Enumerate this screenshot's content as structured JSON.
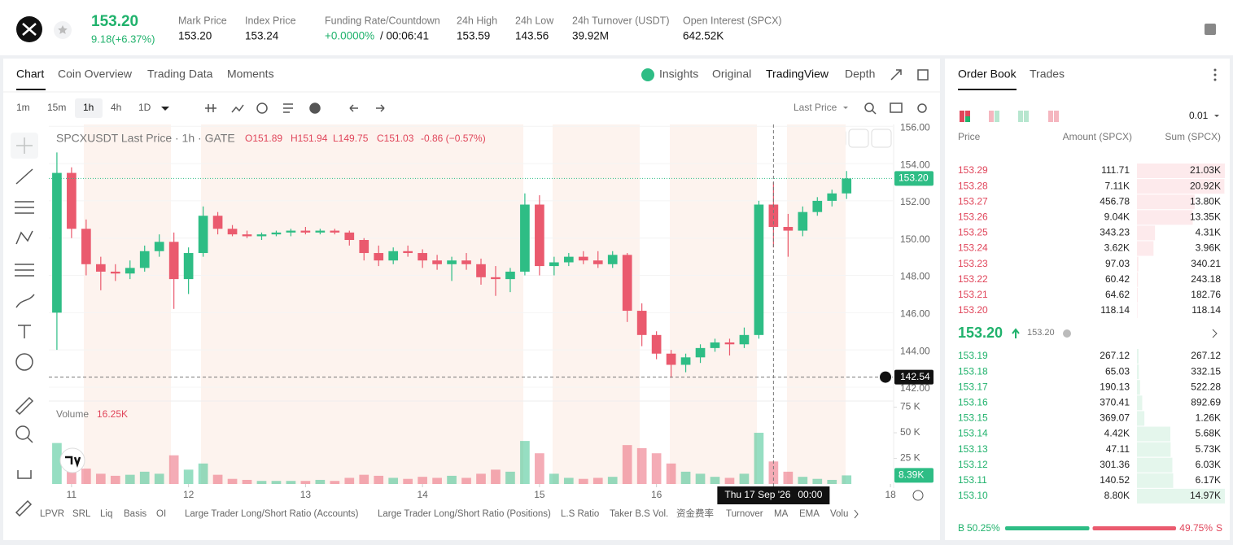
{
  "header": {
    "price": "153.20",
    "change": "9.18(+6.37%)",
    "stats": [
      {
        "label": "Mark Price",
        "value": "153.20"
      },
      {
        "label": "Index Price",
        "value": "153.24"
      },
      {
        "label": "Funding Rate/Countdown",
        "value": "+0.0000%",
        "value2": "/ 00:06:41"
      },
      {
        "label": "24h High",
        "value": "153.59"
      },
      {
        "label": "24h Low",
        "value": "143.56"
      },
      {
        "label": "24h Turnover (USDT)",
        "value": "39.92M"
      },
      {
        "label": "Open Interest (SPCX)",
        "value": "642.52K"
      }
    ]
  },
  "chart_tabs": [
    "Chart",
    "Coin Overview",
    "Trading Data",
    "Moments"
  ],
  "view_tabs": [
    "Insights",
    "Original",
    "TradingView",
    "Depth"
  ],
  "intervals": [
    "1m",
    "15m",
    "1h",
    "4h",
    "1D"
  ],
  "price_source": "Last Price",
  "legend": {
    "title": "SPCXUSDT Last Price · 1h · GATE",
    "ohlc": [
      "O151.89",
      "H151.94",
      "L149.75",
      "C151.03",
      "-0.86 (−0.57%)"
    ]
  },
  "volume_legend": {
    "label": "Volume",
    "value": "16.25K"
  },
  "indicators": [
    "LPVR",
    "SRL",
    "Liq",
    "Basis",
    "OI",
    "Large Trader Long/Short Ratio (Accounts)",
    "Large Trader Long/Short Ratio (Positions)",
    "L.S Ratio",
    "Taker B.S Vol.",
    "资金费率",
    "Turnover",
    "MA",
    "EMA",
    "Volu"
  ],
  "chart_data": {
    "type": "candlestick",
    "up_color": "#2ebd85",
    "down_color": "#ea5a6e",
    "x": [
      10.875,
      11,
      11.125,
      11.25,
      11.375,
      11.5,
      11.625,
      11.75,
      11.875,
      12,
      12.125,
      12.25,
      12.375,
      12.5,
      12.625,
      12.75,
      12.875,
      13,
      13.125,
      13.25,
      13.375,
      13.5,
      13.625,
      13.75,
      13.875,
      14,
      14.125,
      14.25,
      14.375,
      14.5,
      14.625,
      14.75,
      14.875,
      15,
      15.125,
      15.25,
      15.375,
      15.5,
      15.625,
      15.75,
      15.875,
      16,
      16.125,
      16.25,
      16.375,
      16.5,
      16.625,
      16.75,
      16.875,
      17,
      17.125,
      17.25,
      17.375,
      17.5,
      17.625
    ],
    "open": [
      146,
      153.5,
      150.5,
      148.6,
      148.2,
      148.1,
      148.4,
      149.3,
      149.8,
      147.8,
      149.2,
      151.2,
      150.5,
      150.2,
      150.1,
      150.2,
      150.3,
      150.4,
      150.3,
      150.4,
      150.3,
      149.9,
      149.2,
      148.8,
      149.3,
      149.2,
      148.8,
      148.6,
      148.8,
      148.6,
      147.9,
      147.8,
      148.2,
      151.8,
      148.5,
      148.7,
      149,
      148.8,
      148.6,
      149.1,
      146.1,
      144.8,
      143.8,
      143.2,
      143.6,
      144.1,
      144.4,
      144.3,
      144.8,
      151.8,
      150.6,
      150.4,
      151.4,
      152,
      152.4
    ],
    "high": [
      154.6,
      153.8,
      151,
      149,
      148.6,
      148.8,
      149.6,
      150.2,
      150.3,
      149.5,
      151.7,
      151.4,
      150.7,
      150.4,
      150.3,
      150.4,
      150.5,
      150.6,
      150.5,
      150.5,
      150.4,
      150,
      149.6,
      149.5,
      149.6,
      149.4,
      149.1,
      149,
      149.2,
      148.9,
      148.5,
      148.4,
      152.4,
      152.3,
      149,
      149.2,
      149.3,
      149.3,
      149.3,
      149.2,
      146.5,
      145,
      144,
      143.8,
      144.3,
      144.6,
      144.6,
      145.2,
      152,
      153,
      151.3,
      151.7,
      152.2,
      152.6,
      153.6
    ],
    "low": [
      144,
      150,
      148,
      147.2,
      147.7,
      147.8,
      148.2,
      149,
      146.2,
      147,
      149,
      150.2,
      150.1,
      150,
      149.9,
      150.1,
      150.1,
      150.2,
      150.2,
      150.2,
      149.6,
      148.8,
      148.5,
      148.6,
      149,
      148.4,
      148.3,
      147.7,
      148.3,
      147.5,
      146.9,
      147.1,
      148,
      148,
      148,
      148.5,
      148.6,
      148.4,
      148.4,
      145.5,
      144.2,
      143.5,
      142.5,
      142.8,
      143.3,
      143.9,
      143.7,
      144.1,
      144.6,
      149.5,
      149,
      150.1,
      151.2,
      151.7,
      152.1
    ],
    "close": [
      153.5,
      150.5,
      148.6,
      148.2,
      148.1,
      148.4,
      149.3,
      149.8,
      147.8,
      149.2,
      151.2,
      150.5,
      150.2,
      150.1,
      150.2,
      150.3,
      150.4,
      150.3,
      150.4,
      150.3,
      149.9,
      149.2,
      148.8,
      149.3,
      149.2,
      148.8,
      148.6,
      148.8,
      148.6,
      147.9,
      147.8,
      148.2,
      151.8,
      148.5,
      148.7,
      149,
      148.8,
      148.6,
      149.1,
      146.1,
      144.8,
      143.8,
      143.2,
      143.6,
      144.1,
      144.4,
      144.3,
      144.8,
      151.8,
      150.6,
      150.4,
      151.4,
      152,
      152.4,
      153.2
    ],
    "volume": [
      40000,
      22000,
      15000,
      10000,
      8000,
      9000,
      12000,
      10000,
      28000,
      14000,
      20000,
      9000,
      5000,
      4000,
      3000,
      3000,
      3000,
      3000,
      4000,
      3000,
      6000,
      9000,
      8000,
      6000,
      5000,
      7000,
      6000,
      8000,
      6000,
      10000,
      14000,
      12000,
      42000,
      30000,
      10000,
      6000,
      5000,
      6000,
      7000,
      38000,
      35000,
      30000,
      20000,
      12000,
      10000,
      7000,
      6000,
      10000,
      50000,
      22000,
      12000,
      7000,
      5000,
      4000,
      8390
    ],
    "xlim": [
      10.806,
      18.02
    ],
    "xticks": [
      11,
      12,
      13,
      14,
      15,
      16,
      18
    ],
    "ylim": [
      141.3,
      156.1
    ],
    "yticks": [
      {
        "value": 142,
        "label": "142.00"
      },
      {
        "value": 144,
        "label": "144.00"
      },
      {
        "value": 146,
        "label": "146.00"
      },
      {
        "value": 148,
        "label": "148.00"
      },
      {
        "value": 150,
        "label": "150.00"
      },
      {
        "value": 152,
        "label": "152.00"
      },
      {
        "value": 154,
        "label": "154.00"
      },
      {
        "value": 156,
        "label": "156.00"
      }
    ],
    "volume_ylim": [
      0,
      81000
    ],
    "volume_yticks": [
      {
        "value": 25000,
        "label": "25 K"
      },
      {
        "value": 50000,
        "label": "50 K"
      },
      {
        "value": 75000,
        "label": "75 K"
      }
    ],
    "last_price": {
      "value": 153.2,
      "label": "153.20"
    },
    "volume_last": {
      "value": 8390,
      "label": "8.39K"
    },
    "crosshair": {
      "x": 17,
      "y": 142.54,
      "date": "Thu 17 Sep '26",
      "time": "00:00"
    }
  },
  "order_book": {
    "tabs": [
      "Order Book",
      "Trades"
    ],
    "step": "0.01",
    "columns": [
      "Price",
      "Amount (SPCX)",
      "Sum (SPCX)"
    ],
    "asks": [
      {
        "price": "153.29",
        "amount": "111.71",
        "sum": {
          "value": 21030,
          "label": "21.03K"
        }
      },
      {
        "price": "153.28",
        "amount": "7.11K",
        "sum": {
          "value": 20920,
          "label": "20.92K"
        }
      },
      {
        "price": "153.27",
        "amount": "456.78",
        "sum": {
          "value": 13800,
          "label": "13.80K"
        }
      },
      {
        "price": "153.26",
        "amount": "9.04K",
        "sum": {
          "value": 13350,
          "label": "13.35K"
        }
      },
      {
        "price": "153.25",
        "amount": "343.23",
        "sum": {
          "value": 4310,
          "label": "4.31K"
        }
      },
      {
        "price": "153.24",
        "amount": "3.62K",
        "sum": {
          "value": 3960,
          "label": "3.96K"
        }
      },
      {
        "price": "153.23",
        "amount": "97.03",
        "sum": 340.21
      },
      {
        "price": "153.22",
        "amount": "60.42",
        "sum": 243.18
      },
      {
        "price": "153.21",
        "amount": "64.62",
        "sum": 182.76
      },
      {
        "price": "153.20",
        "amount": "118.14",
        "sum": 118.14
      }
    ],
    "mid": {
      "price": "153.20",
      "mark": "153.20"
    },
    "bids": [
      {
        "price": "153.19",
        "amount": "267.12",
        "sum": 267.12
      },
      {
        "price": "153.18",
        "amount": "65.03",
        "sum": 332.15
      },
      {
        "price": "153.17",
        "amount": "190.13",
        "sum": 522.28
      },
      {
        "price": "153.16",
        "amount": "370.41",
        "sum": 892.69
      },
      {
        "price": "153.15",
        "amount": "369.07",
        "sum": {
          "value": 1260,
          "label": "1.26K"
        }
      },
      {
        "price": "153.14",
        "amount": "4.42K",
        "sum": {
          "value": 5680,
          "label": "5.68K"
        }
      },
      {
        "price": "153.13",
        "amount": "47.11",
        "sum": {
          "value": 5730,
          "label": "5.73K"
        }
      },
      {
        "price": "153.12",
        "amount": "301.36",
        "sum": {
          "value": 6030,
          "label": "6.03K"
        }
      },
      {
        "price": "153.11",
        "amount": "140.52",
        "sum": {
          "value": 6170,
          "label": "6.17K"
        }
      },
      {
        "price": "153.10",
        "amount": "8.80K",
        "sum": {
          "value": 14970,
          "label": "14.97K"
        }
      }
    ],
    "ratio": {
      "buy_tag": "B",
      "buy": {
        "value": 50.25,
        "label": "50.25%"
      },
      "sell": {
        "value": 49.75,
        "label": "49.75%"
      },
      "sell_tag": "S"
    }
  }
}
